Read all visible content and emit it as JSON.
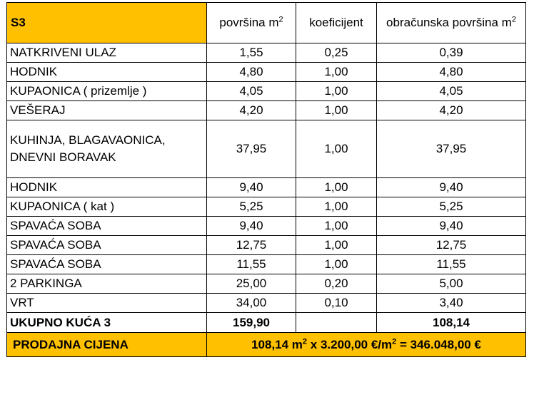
{
  "header": {
    "unit": "S3",
    "col_area": "površina m",
    "col_area_sup": "2",
    "col_coef": "koeficijent",
    "col_calc": "obračunska površina m",
    "col_calc_sup": "2"
  },
  "rows": [
    {
      "name": "NATKRIVENI ULAZ",
      "area": "1,55",
      "coef": "0,25",
      "calc": "0,39"
    },
    {
      "name": "HODNIK",
      "area": "4,80",
      "coef": "1,00",
      "calc": "4,80"
    },
    {
      "name": "KUPAONICA ( prizemlje )",
      "area": "4,05",
      "coef": "1,00",
      "calc": "4,05"
    },
    {
      "name": "VEŠERAJ",
      "area": "4,20",
      "coef": "1,00",
      "calc": "4,20"
    },
    {
      "name": "KUHINJA, BLAGAVAONICA, DNEVNI BORAVAK",
      "area": "37,95",
      "coef": "1,00",
      "calc": "37,95"
    },
    {
      "name": "HODNIK",
      "area": "9,40",
      "coef": "1,00",
      "calc": "9,40"
    },
    {
      "name": "KUPAONICA ( kat )",
      "area": "5,25",
      "coef": "1,00",
      "calc": "5,25"
    },
    {
      "name": "SPAVAĆA SOBA",
      "area": "9,40",
      "coef": "1,00",
      "calc": "9,40"
    },
    {
      "name": "SPAVAĆA SOBA",
      "area": "12,75",
      "coef": "1,00",
      "calc": "12,75"
    },
    {
      "name": "SPAVAĆA SOBA",
      "area": "11,55",
      "coef": "1,00",
      "calc": "11,55"
    },
    {
      "name": "2 PARKINGA",
      "area": "25,00",
      "coef": "0,20",
      "calc": "5,00"
    },
    {
      "name": "VRT",
      "area": "34,00",
      "coef": "0,10",
      "calc": "3,40"
    }
  ],
  "total": {
    "label": "UKUPNO KUĆA 3",
    "area": "159,90",
    "calc": "108,14"
  },
  "price": {
    "label": "PRODAJNA CIJENA",
    "part1": "108,14 m",
    "sup1": "2",
    "part2": " x 3.200,00 €/m",
    "sup2": "2",
    "part3": " = 346.048,00 €"
  }
}
